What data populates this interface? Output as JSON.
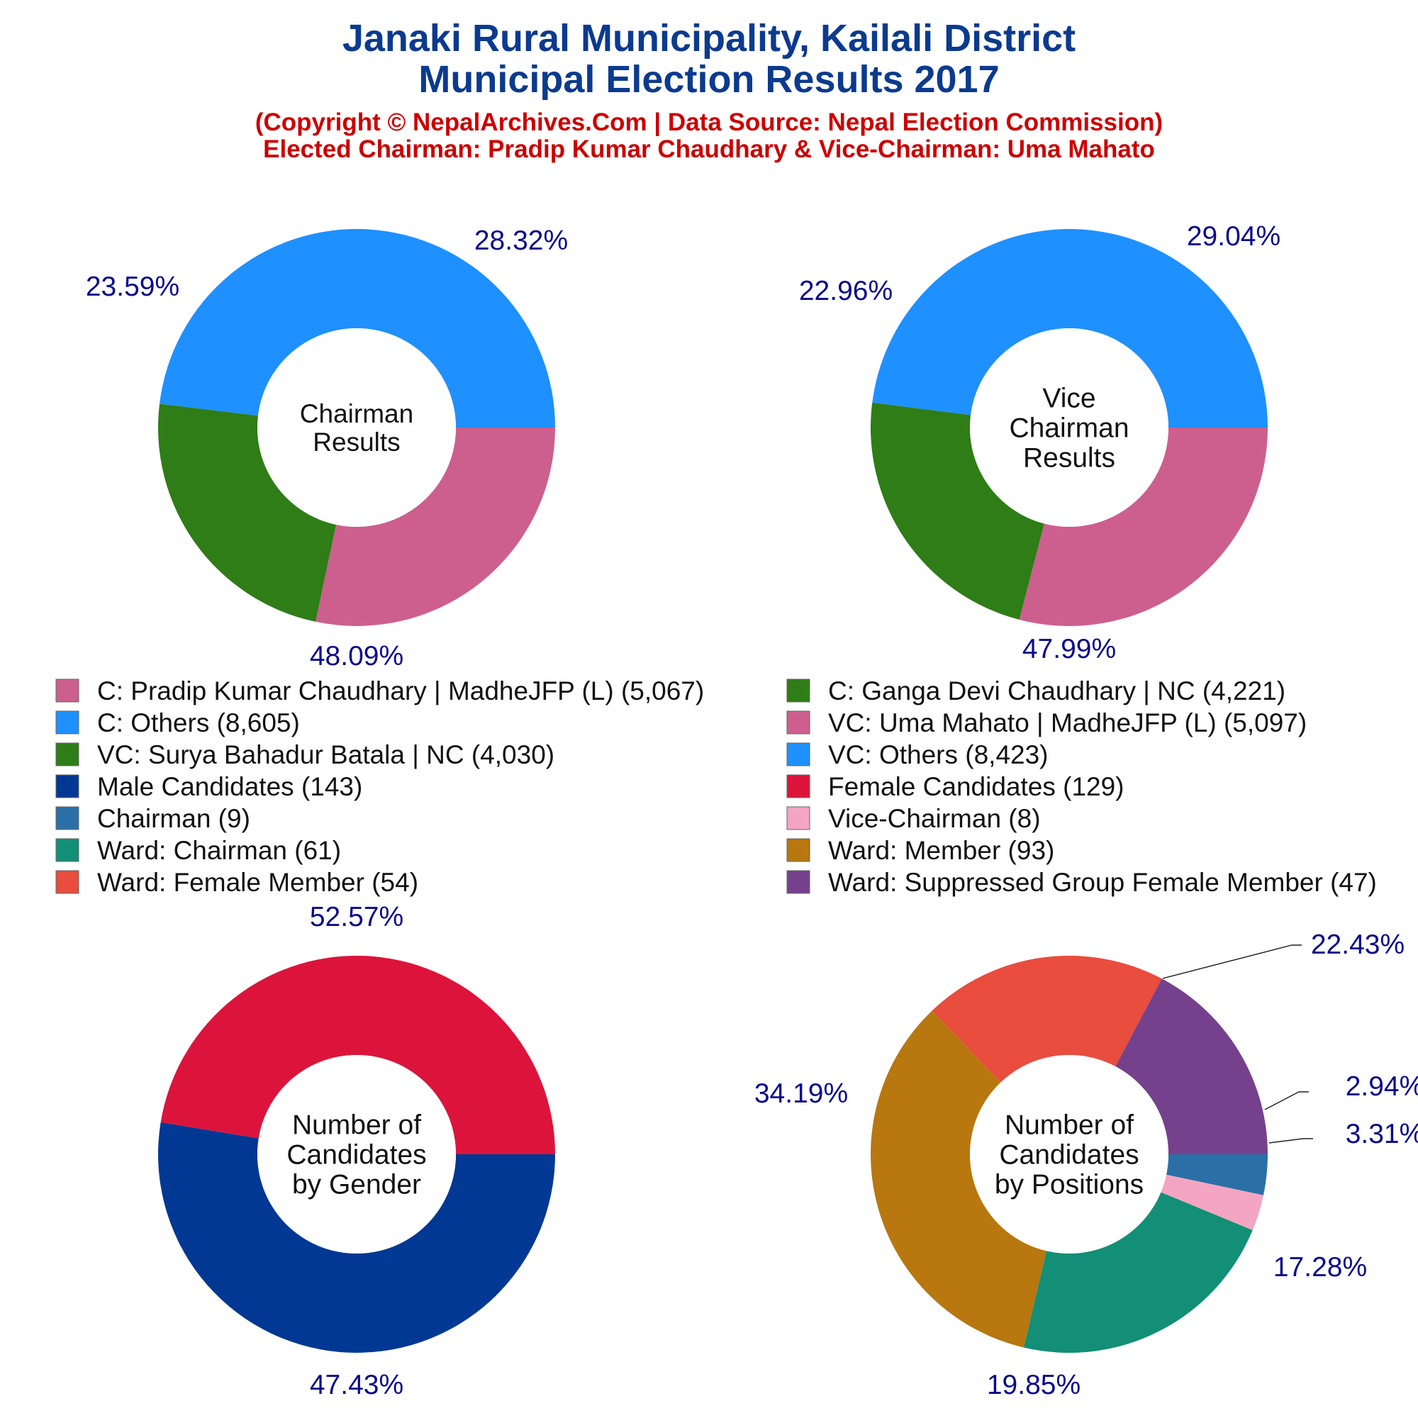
{
  "title": {
    "line1": "Janaki Rural Municipality, Kailali District",
    "line2": "Municipal Election Results 2017"
  },
  "subtitle": {
    "line1": "(Copyright © NepalArchives.Com | Data Source: Nepal Election Commission)",
    "line2": "Elected Chairman: Pradip Kumar Chaudhary & Vice-Chairman: Uma Mahato"
  },
  "legend": {
    "columns": [
      [
        {
          "label": "C: Pradip Kumar Chaudhary | MadheJFP (L) (5,067)",
          "color": "#cd5f8f"
        },
        {
          "label": "C: Others (8,605)",
          "color": "#1f90ff"
        },
        {
          "label": "VC: Surya Bahadur Batala | NC (4,030)",
          "color": "#2e7d16"
        },
        {
          "label": "Male Candidates (143)",
          "color": "#003894"
        },
        {
          "label": "Chairman (9)",
          "color": "#2a70a6"
        },
        {
          "label": "Ward: Chairman (61)",
          "color": "#128f76"
        },
        {
          "label": "Ward: Female Member (54)",
          "color": "#e84d3d"
        }
      ],
      [
        {
          "label": "C: Ganga Devi Chaudhary | NC (4,221)",
          "color": "#2e7d16"
        },
        {
          "label": "VC: Uma Mahato | MadheJFP (L) (5,097)",
          "color": "#cd5f8f"
        },
        {
          "label": "VC: Others (8,423)",
          "color": "#1f90ff"
        },
        {
          "label": "Female Candidates (129)",
          "color": "#dc143c"
        },
        {
          "label": "Vice-Chairman (8)",
          "color": "#f4a5c2"
        },
        {
          "label": "Ward: Member (93)",
          "color": "#b8770f"
        },
        {
          "label": "Ward: Suppressed Group Female Member (47)",
          "color": "#75418d"
        }
      ]
    ]
  },
  "chart_data": [
    {
      "type": "pie",
      "style": "donut",
      "center_label": [
        "Chairman",
        "Results"
      ],
      "slices": [
        {
          "label": "C: Pradip Kumar Chaudhary | MadheJFP (L)",
          "value": 5067,
          "pct_text": "28.32%",
          "color": "#cd5f8f"
        },
        {
          "label": "C: Ganga Devi Chaudhary | NC",
          "value": 4221,
          "pct_text": "23.59%",
          "color": "#2e7d16"
        },
        {
          "label": "C: Others",
          "value": 8605,
          "pct_text": "48.09%",
          "color": "#1f90ff"
        }
      ]
    },
    {
      "type": "pie",
      "style": "donut",
      "center_label": [
        "Vice",
        "Chairman",
        "Results"
      ],
      "slices": [
        {
          "label": "VC: Uma Mahato | MadheJFP (L)",
          "value": 5097,
          "pct_text": "29.04%",
          "color": "#cd5f8f"
        },
        {
          "label": "VC: Surya Bahadur Batala | NC",
          "value": 4030,
          "pct_text": "22.96%",
          "color": "#2e7d16"
        },
        {
          "label": "VC: Others",
          "value": 8423,
          "pct_text": "47.99%",
          "color": "#1f90ff"
        }
      ]
    },
    {
      "type": "pie",
      "style": "donut",
      "center_label": [
        "Number of",
        "Candidates",
        "by Gender"
      ],
      "slices": [
        {
          "label": "Male Candidates",
          "value": 143,
          "pct_text": "52.57%",
          "color": "#003894"
        },
        {
          "label": "Female Candidates",
          "value": 129,
          "pct_text": "47.43%",
          "color": "#dc143c"
        }
      ]
    },
    {
      "type": "pie",
      "style": "donut",
      "center_label": [
        "Number of",
        "Candidates",
        "by Positions"
      ],
      "slices": [
        {
          "label": "Chairman",
          "value": 9,
          "pct_text": "3.31%",
          "color": "#2a70a6"
        },
        {
          "label": "Vice-Chairman",
          "value": 8,
          "pct_text": "2.94%",
          "color": "#f4a5c2"
        },
        {
          "label": "Ward: Chairman",
          "value": 61,
          "pct_text": "22.43%",
          "color": "#128f76"
        },
        {
          "label": "Ward: Member",
          "value": 93,
          "pct_text": "34.19%",
          "color": "#b8770f"
        },
        {
          "label": "Ward: Female Member",
          "value": 54,
          "pct_text": "19.85%",
          "color": "#e84d3d"
        },
        {
          "label": "Ward: Suppressed Group Female Member",
          "value": 47,
          "pct_text": "17.28%",
          "color": "#75418d"
        }
      ]
    }
  ]
}
